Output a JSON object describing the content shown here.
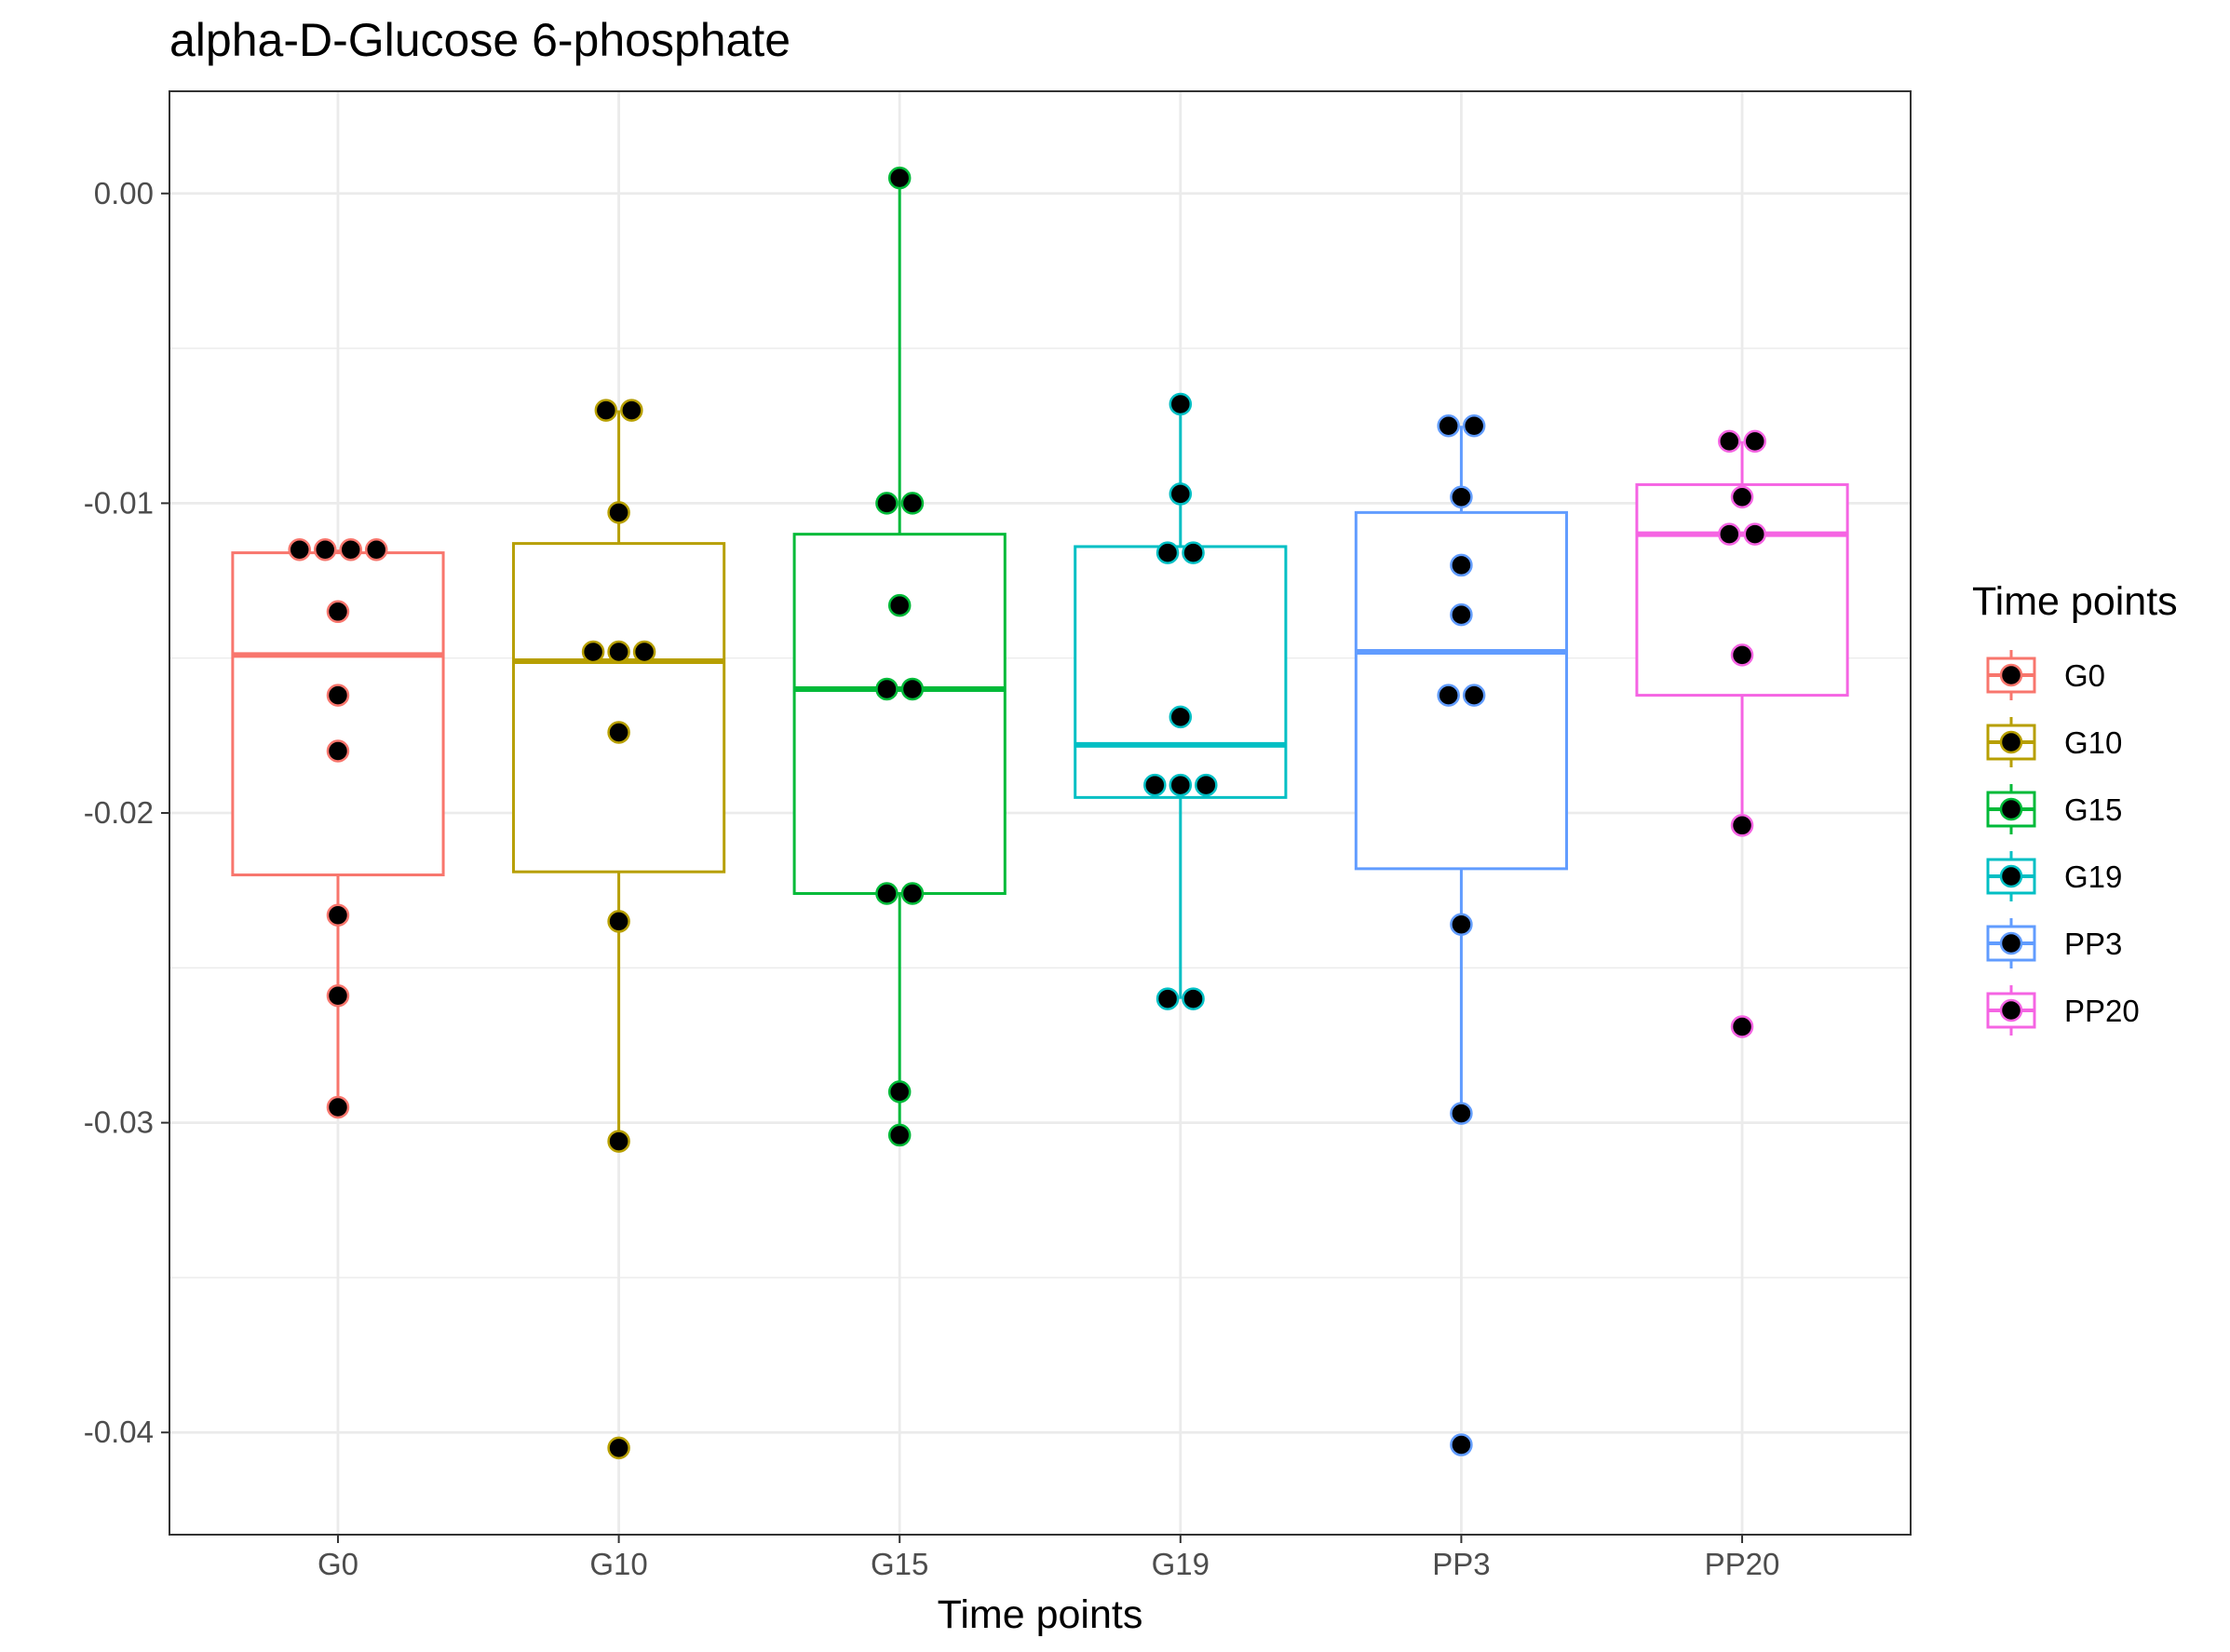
{
  "chart_data": {
    "type": "box",
    "title": "alpha-D-Glucose 6-phosphate",
    "xlabel": "Time points",
    "ylabel": "",
    "ylim": [
      -0.0433,
      0.0033
    ],
    "y_ticks": [
      "0.00",
      "-0.01",
      "-0.02",
      "-0.03",
      "-0.04"
    ],
    "y_tick_values": [
      0.0,
      -0.01,
      -0.02,
      -0.03,
      -0.04
    ],
    "grid": true,
    "legend": {
      "title": "Time points",
      "position": "right"
    },
    "categories": [
      "G0",
      "G10",
      "G15",
      "G19",
      "PP3",
      "PP20"
    ],
    "series": [
      {
        "name": "G0",
        "color": "#F8766D",
        "box": {
          "min": -0.0295,
          "q1": -0.022,
          "median": -0.0149,
          "q3": -0.0116,
          "max": -0.0115
        },
        "points": [
          -0.0115,
          -0.0115,
          -0.0115,
          -0.0115,
          -0.0135,
          -0.0162,
          -0.018,
          -0.0233,
          -0.0259,
          -0.0295
        ]
      },
      {
        "name": "G10",
        "color": "#B79F00",
        "box": {
          "min": -0.0306,
          "q1": -0.0219,
          "median": -0.0151,
          "q3": -0.0113,
          "max": -0.007
        },
        "points": [
          -0.007,
          -0.007,
          -0.0103,
          -0.0148,
          -0.0148,
          -0.0148,
          -0.0174,
          -0.0235,
          -0.0306,
          -0.0405
        ]
      },
      {
        "name": "G15",
        "color": "#00BA38",
        "box": {
          "min": -0.0304,
          "q1": -0.0226,
          "median": -0.016,
          "q3": -0.011,
          "max": 0.0005
        },
        "points": [
          0.0005,
          -0.01,
          -0.01,
          -0.0133,
          -0.016,
          -0.016,
          -0.0226,
          -0.0226,
          -0.029,
          -0.0304
        ]
      },
      {
        "name": "G19",
        "color": "#00BFC4",
        "box": {
          "min": -0.026,
          "q1": -0.0195,
          "median": -0.0178,
          "q3": -0.0114,
          "max": -0.0068
        },
        "points": [
          -0.0068,
          -0.0097,
          -0.0116,
          -0.0116,
          -0.0169,
          -0.0191,
          -0.0191,
          -0.0191,
          -0.026,
          -0.026
        ]
      },
      {
        "name": "PP3",
        "color": "#619CFF",
        "box": {
          "min": -0.0297,
          "q1": -0.0218,
          "median": -0.0148,
          "q3": -0.0103,
          "max": -0.0075
        },
        "points": [
          -0.0075,
          -0.0075,
          -0.0098,
          -0.012,
          -0.0136,
          -0.0162,
          -0.0162,
          -0.0236,
          -0.0297,
          -0.0404
        ]
      },
      {
        "name": "PP20",
        "color": "#F564E3",
        "box": {
          "min": -0.0204,
          "q1": -0.0162,
          "median": -0.011,
          "q3": -0.0094,
          "max": -0.008
        },
        "points": [
          -0.008,
          -0.008,
          -0.0098,
          -0.011,
          -0.011,
          -0.0149,
          -0.0204,
          -0.0269
        ]
      }
    ]
  }
}
